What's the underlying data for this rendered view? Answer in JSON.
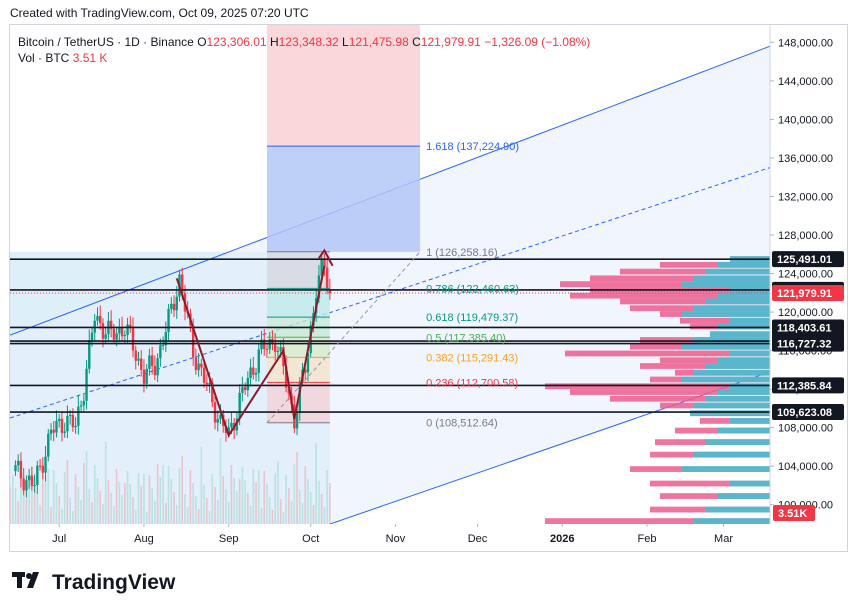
{
  "caption": "Created with TradingView.com, Oct 09, 2025 07:20 UTC",
  "legend": {
    "symbol": "Bitcoin / TetherUS · 1D · Binance",
    "open_label": "O",
    "open": "123,306.01",
    "high_label": "H",
    "high": "123,348.32",
    "low_label": "L",
    "low": "121,475.98",
    "close_label": "C",
    "close": "121,979.91",
    "change": "−1,326.09 (−1.08%)",
    "volume_label": "Vol · BTC",
    "volume": "3.51 K"
  },
  "brand": {
    "name": "TradingView"
  },
  "colors": {
    "up": "#089981",
    "down": "#f23645",
    "channel": "#2962ff",
    "fib_ext": "#2962ff"
  },
  "chart_data": {
    "type": "line",
    "title": "",
    "x_ticks": [
      "Jul",
      "Aug",
      "Sep",
      "Oct",
      "Nov",
      "Dec",
      "2026",
      "Feb",
      "Mar"
    ],
    "y_ticks": [
      "100,000.00",
      "104,000.00",
      "108,000.00",
      "112,000.00",
      "116,000.00",
      "120,000.00",
      "124,000.00",
      "128,000.00",
      "132,000.00",
      "136,000.00",
      "140,000.00",
      "144,000.00",
      "148,000.00"
    ],
    "ylim": [
      98000,
      149800
    ],
    "series": [
      {
        "x": [
          "2025-06-15",
          "2025-06-22",
          "2025-06-28",
          "2025-07-03",
          "2025-07-07",
          "2025-07-10",
          "2025-07-14",
          "2025-07-20",
          "2025-07-25",
          "2025-08-01",
          "2025-08-05",
          "2025-08-10",
          "2025-08-14",
          "2025-08-19",
          "2025-08-25",
          "2025-08-29",
          "2025-09-01",
          "2025-09-05",
          "2025-09-12",
          "2025-09-18",
          "2025-09-22",
          "2025-09-25",
          "2025-09-29",
          "2025-10-03",
          "2025-10-06",
          "2025-10-08"
        ],
        "values": [
          103500,
          102000,
          107500,
          108800,
          108100,
          112200,
          119500,
          117500,
          118500,
          113500,
          114500,
          119000,
          123500,
          116000,
          111500,
          108500,
          107200,
          110800,
          115700,
          117200,
          112800,
          108900,
          114300,
          122300,
          124800,
          121980
        ]
      }
    ],
    "price_levels": [
      "125,491.01",
      "122,301.68",
      "121,979.91",
      "118,403.61",
      "116,993.54",
      "116,727.32",
      "112,385.84",
      "109,623.08"
    ],
    "volume_badge": "3.51K",
    "fibonacci": [
      {
        "label": "1.618 (137,224.90)",
        "value": 137224.9
      },
      {
        "label": "1 (126,258.16)",
        "value": 126258.16
      },
      {
        "label": "0.786 (122,460.63)",
        "value": 122460.63
      },
      {
        "label": "0.618 (119,479.37)",
        "value": 119479.37
      },
      {
        "label": "0.5 (117,385.40)",
        "value": 117385.4
      },
      {
        "label": "0.382 (115,291.43)",
        "value": 115291.43
      },
      {
        "label": "0.236 (112,700.58)",
        "value": 112700.58
      },
      {
        "label": "0 (108,512.64)",
        "value": 108512.64
      }
    ]
  }
}
